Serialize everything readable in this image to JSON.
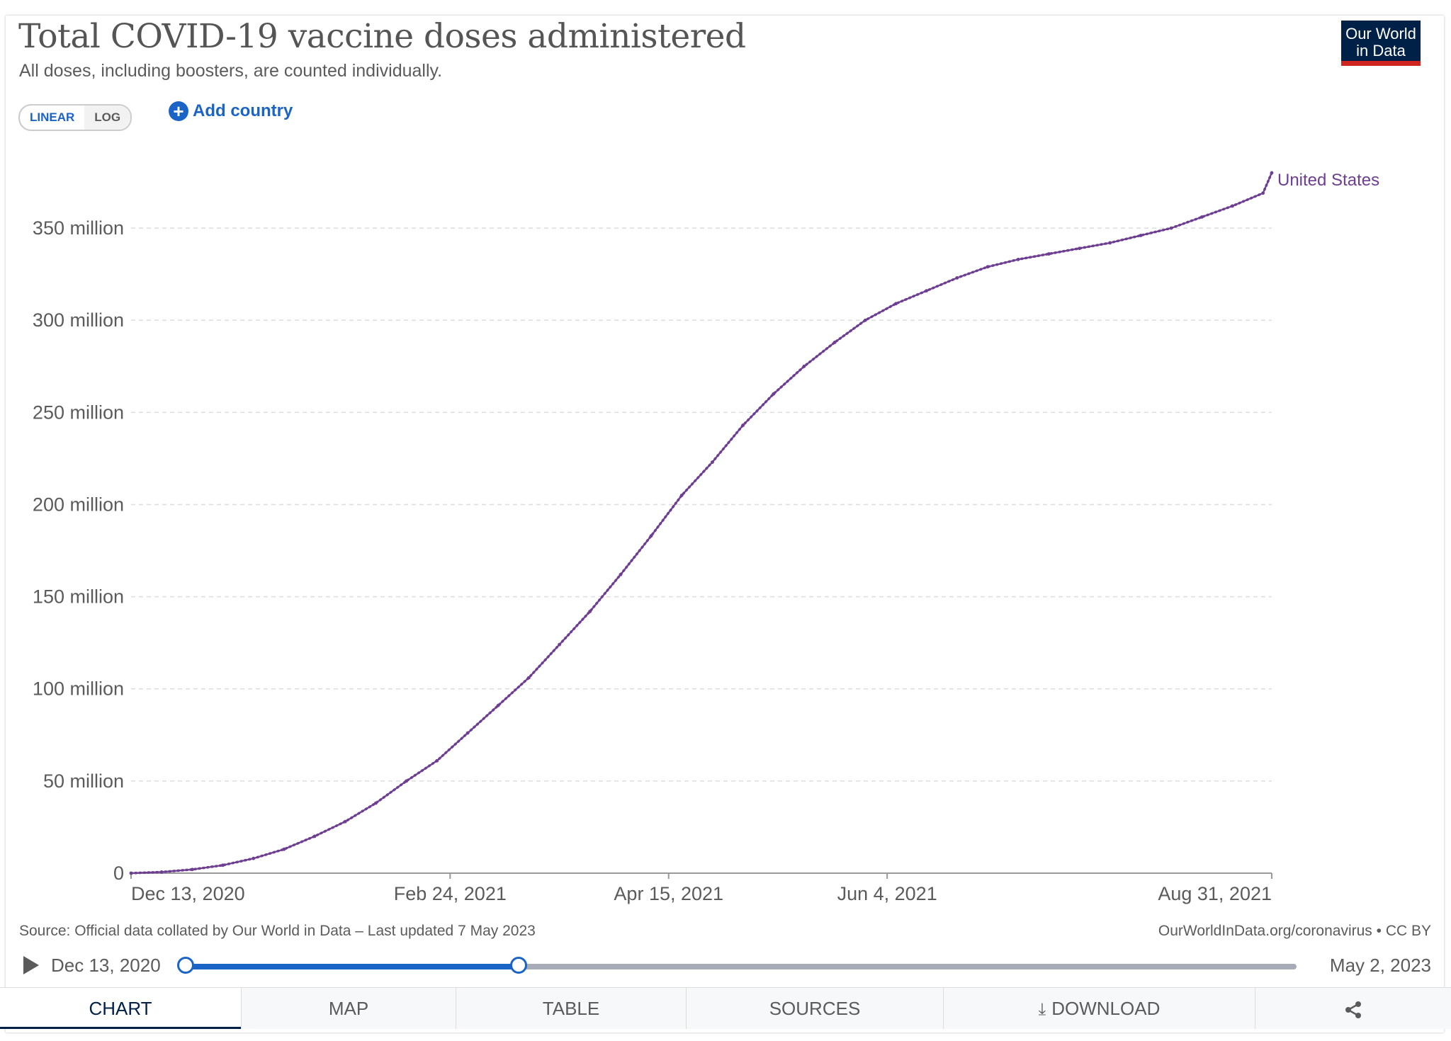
{
  "header": {
    "title": "Total COVID-19 vaccine doses administered",
    "subtitle": "All doses, including boosters, are counted individually.",
    "logo_line1": "Our World",
    "logo_line2": "in Data"
  },
  "controls": {
    "linear_label": "LINEAR",
    "log_label": "LOG",
    "add_country_label": "Add country"
  },
  "chart_data": {
    "type": "line",
    "title": "Total COVID-19 vaccine doses administered",
    "subtitle": "All doses, including boosters, are counted individually.",
    "xlabel": "",
    "ylabel": "",
    "x_ticks": [
      {
        "label": "Dec 13, 2020",
        "date": "2020-12-13"
      },
      {
        "label": "Feb 24, 2021",
        "date": "2021-02-24"
      },
      {
        "label": "Apr 15, 2021",
        "date": "2021-04-15"
      },
      {
        "label": "Jun 4, 2021",
        "date": "2021-06-04"
      },
      {
        "label": "Aug 31, 2021",
        "date": "2021-08-31"
      }
    ],
    "y_ticks": [
      {
        "label": "0",
        "value": 0
      },
      {
        "label": "50 million",
        "value": 50000000
      },
      {
        "label": "100 million",
        "value": 100000000
      },
      {
        "label": "150 million",
        "value": 150000000
      },
      {
        "label": "200 million",
        "value": 200000000
      },
      {
        "label": "250 million",
        "value": 250000000
      },
      {
        "label": "300 million",
        "value": 300000000
      },
      {
        "label": "350 million",
        "value": 350000000
      }
    ],
    "xlim": [
      "2020-12-13",
      "2021-08-31"
    ],
    "ylim": [
      0,
      390000000
    ],
    "grid": true,
    "series": [
      {
        "name": "United States",
        "color": "#6d3e91",
        "points": [
          [
            "2020-12-13",
            0
          ],
          [
            "2020-12-20",
            600000
          ],
          [
            "2020-12-27",
            2000000
          ],
          [
            "2021-01-03",
            4300000
          ],
          [
            "2021-01-10",
            8000000
          ],
          [
            "2021-01-17",
            13000000
          ],
          [
            "2021-01-24",
            20000000
          ],
          [
            "2021-01-31",
            28000000
          ],
          [
            "2021-02-07",
            38000000
          ],
          [
            "2021-02-14",
            50000000
          ],
          [
            "2021-02-21",
            61000000
          ],
          [
            "2021-02-28",
            76000000
          ],
          [
            "2021-03-07",
            91000000
          ],
          [
            "2021-03-14",
            106000000
          ],
          [
            "2021-03-21",
            124000000
          ],
          [
            "2021-03-28",
            142000000
          ],
          [
            "2021-04-04",
            162000000
          ],
          [
            "2021-04-11",
            183000000
          ],
          [
            "2021-04-18",
            205000000
          ],
          [
            "2021-04-25",
            223000000
          ],
          [
            "2021-05-02",
            243000000
          ],
          [
            "2021-05-09",
            260000000
          ],
          [
            "2021-05-16",
            275000000
          ],
          [
            "2021-05-23",
            288000000
          ],
          [
            "2021-05-30",
            300000000
          ],
          [
            "2021-06-06",
            309000000
          ],
          [
            "2021-06-13",
            316000000
          ],
          [
            "2021-06-20",
            323000000
          ],
          [
            "2021-06-27",
            329000000
          ],
          [
            "2021-07-04",
            333000000
          ],
          [
            "2021-07-11",
            336000000
          ],
          [
            "2021-07-18",
            339000000
          ],
          [
            "2021-07-25",
            342000000
          ],
          [
            "2021-08-01",
            346000000
          ],
          [
            "2021-08-08",
            350000000
          ],
          [
            "2021-08-15",
            356000000
          ],
          [
            "2021-08-22",
            362000000
          ],
          [
            "2021-08-29",
            369000000
          ],
          [
            "2021-08-31",
            380000000
          ]
        ]
      }
    ],
    "legend": "line-end label"
  },
  "footer": {
    "source": "Source: Official data collated by Our World in Data – Last updated 7 May 2023",
    "license": "OurWorldInData.org/coronavirus • CC BY"
  },
  "timeline": {
    "start_label": "Dec 13, 2020",
    "end_label": "May 2, 2023",
    "range_start": "2020-12-13",
    "range_end": "2021-08-31",
    "full_start": "2020-12-13",
    "full_end": "2023-05-02"
  },
  "tabs": [
    {
      "label": "CHART",
      "active": true
    },
    {
      "label": "MAP"
    },
    {
      "label": "TABLE"
    },
    {
      "label": "SOURCES"
    },
    {
      "label": "DOWNLOAD",
      "icon": "download-icon"
    },
    {
      "label": "",
      "icon": "share-icon"
    }
  ]
}
